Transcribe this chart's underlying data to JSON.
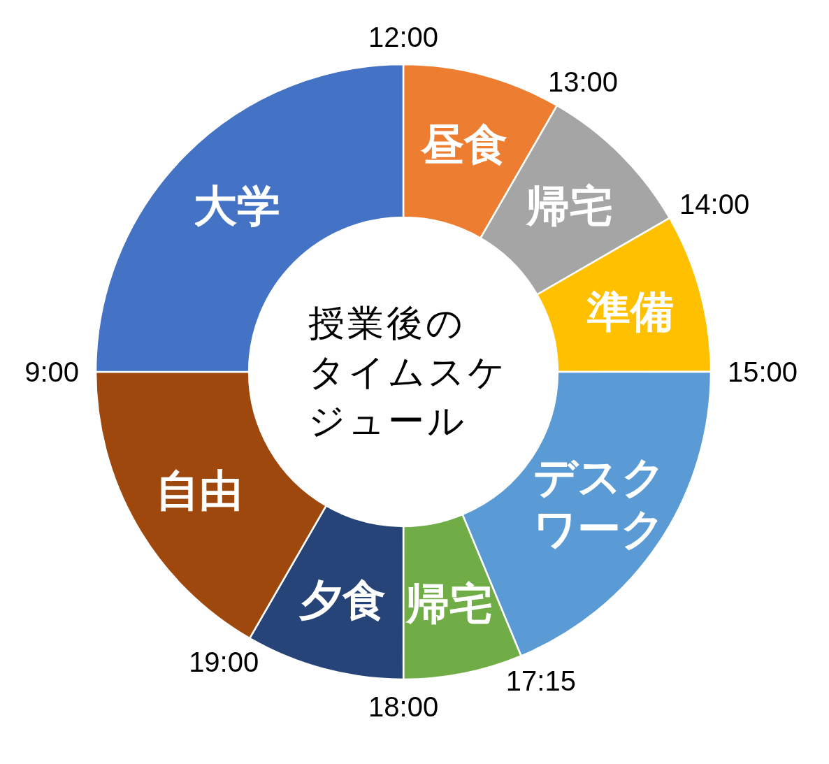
{
  "chart_data": {
    "type": "donut",
    "title": "授業後のタイムスケジュール",
    "categories": [
      "昼食",
      "帰宅",
      "準備",
      "デスクワーク",
      "帰宅",
      "夕食",
      "自由",
      "大学"
    ],
    "values": [
      8.33,
      8.33,
      8.33,
      18.75,
      6.25,
      8.33,
      16.67,
      25
    ],
    "colors": [
      "#ed7d31",
      "#a5a5a5",
      "#ffc000",
      "#5b9bd5",
      "#70ad47",
      "#264478",
      "#9e480e",
      "#4472c4"
    ],
    "annotations": [
      "12:00",
      "13:00",
      "14:00",
      "15:00",
      "17:15",
      "18:00",
      "19:00",
      "9:00"
    ]
  }
}
